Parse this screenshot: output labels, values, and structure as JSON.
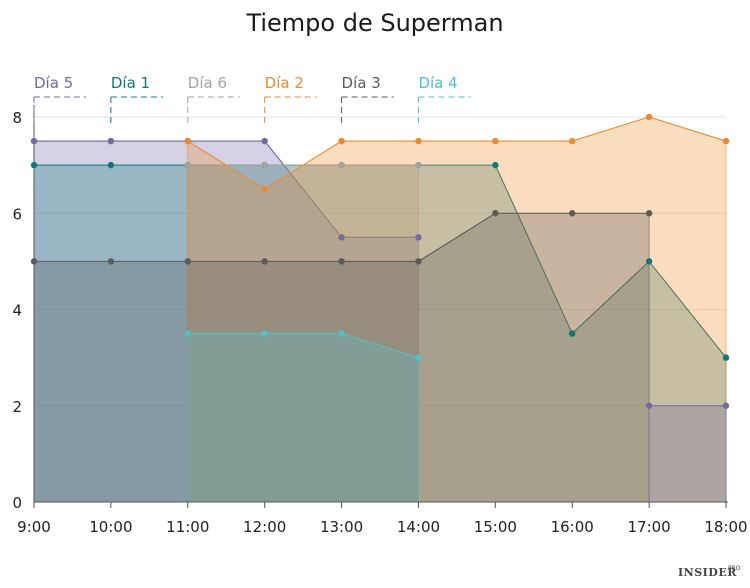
{
  "chart_data": {
    "type": "area",
    "title": "Tiempo de Superman",
    "x": [
      "9:00",
      "10:00",
      "11:00",
      "12:00",
      "13:00",
      "14:00",
      "15:00",
      "16:00",
      "17:00",
      "18:00"
    ],
    "ylim": [
      0,
      8
    ],
    "yticks": [
      0,
      2,
      4,
      6,
      8
    ],
    "grid": true,
    "legend_position": "top",
    "series": [
      {
        "name": "Día 5",
        "color": "#7468a6",
        "points": [
          [
            "9:00",
            7.5
          ],
          [
            "10:00",
            7.5
          ],
          [
            "11:00",
            7.5
          ],
          [
            "12:00",
            7.5
          ],
          [
            "13:00",
            5.5
          ],
          [
            "14:00",
            5.5
          ]
        ]
      },
      {
        "name": "Día 1",
        "color": "#10787c",
        "points": [
          [
            "9:00",
            7
          ],
          [
            "10:00",
            7
          ],
          [
            "11:00",
            7
          ],
          [
            "12:00",
            7
          ],
          [
            "13:00",
            7
          ],
          [
            "14:00",
            7
          ],
          [
            "15:00",
            7
          ],
          [
            "16:00",
            3.5
          ],
          [
            "17:00",
            5
          ],
          [
            "18:00",
            3
          ]
        ]
      },
      {
        "name": "Día 6",
        "color": "#a3a3a3",
        "points": [
          [
            "11:00",
            7
          ],
          [
            "12:00",
            7
          ],
          [
            "13:00",
            7
          ],
          [
            "14:00",
            7
          ]
        ]
      },
      {
        "name": "Día 2",
        "color": "#ef8a2b",
        "points": [
          [
            "11:00",
            7.5
          ],
          [
            "12:00",
            6.5
          ],
          [
            "13:00",
            7.5
          ],
          [
            "14:00",
            7.5
          ],
          [
            "15:00",
            7.5
          ],
          [
            "16:00",
            7.5
          ],
          [
            "17:00",
            8
          ],
          [
            "18:00",
            7.5
          ]
        ]
      },
      {
        "name": "Día 3",
        "color": "#5b5b5b",
        "points": [
          [
            "9:00",
            5
          ],
          [
            "10:00",
            5
          ],
          [
            "11:00",
            5
          ],
          [
            "12:00",
            5
          ],
          [
            "13:00",
            5
          ],
          [
            "14:00",
            5
          ],
          [
            "15:00",
            6
          ],
          [
            "16:00",
            6
          ],
          [
            "17:00",
            6
          ]
        ]
      },
      {
        "name": "Día 4",
        "color": "#4fc0c9",
        "points": [
          [
            "11:00",
            3.5
          ],
          [
            "12:00",
            3.5
          ],
          [
            "13:00",
            3.5
          ],
          [
            "14:00",
            3
          ]
        ]
      },
      {
        "name": "Día 5",
        "color": "#7468a6",
        "points": [
          [
            "17:00",
            2
          ],
          [
            "18:00",
            2
          ]
        ]
      }
    ]
  },
  "legend": [
    {
      "label": "Día 5",
      "color": "#7468a6",
      "anchor": "9:00"
    },
    {
      "label": "Día 1",
      "color": "#10787c",
      "anchor": "10:00"
    },
    {
      "label": "Día 6",
      "color": "#a3a3a3",
      "anchor": "11:00"
    },
    {
      "label": "Día 2",
      "color": "#ef8a2b",
      "anchor": "12:00"
    },
    {
      "label": "Día 3",
      "color": "#5b5b5b",
      "anchor": "13:00"
    },
    {
      "label": "Día 4",
      "color": "#4fc0c9",
      "anchor": "14:00"
    }
  ],
  "credit": {
    "main": "INSIDER",
    "sup": "PRO"
  }
}
